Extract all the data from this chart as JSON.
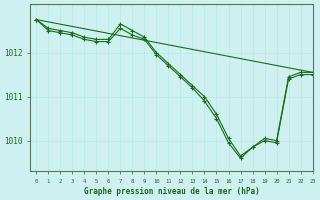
{
  "title": "Graphe pression niveau de la mer (hPa)",
  "bg_color": "#cff0f0",
  "grid_color": "#b8e8e8",
  "line_color": "#1a6b1a",
  "marker_color": "#1a6b1a",
  "xlim": [
    -0.5,
    23
  ],
  "ylim": [
    1009.3,
    1013.1
  ],
  "yticks": [
    1010,
    1011,
    1012
  ],
  "xticks": [
    0,
    1,
    2,
    3,
    4,
    5,
    6,
    7,
    8,
    9,
    10,
    11,
    12,
    13,
    14,
    15,
    16,
    17,
    18,
    19,
    20,
    21,
    22,
    23
  ],
  "series_straight": {
    "x": [
      0,
      23
    ],
    "y": [
      1012.75,
      1011.55
    ]
  },
  "series_wavy1": {
    "x": [
      0,
      1,
      2,
      3,
      4,
      5,
      6,
      7,
      8,
      9,
      10,
      11,
      12,
      13,
      14,
      15,
      16,
      17,
      18,
      19,
      20,
      21,
      22,
      23
    ],
    "y": [
      1012.75,
      1012.55,
      1012.5,
      1012.45,
      1012.35,
      1012.3,
      1012.3,
      1012.65,
      1012.5,
      1012.35,
      1012.0,
      1011.75,
      1011.5,
      1011.25,
      1011.0,
      1010.6,
      1010.05,
      1009.65,
      1009.85,
      1010.05,
      1010.0,
      1011.45,
      1011.55,
      1011.55
    ]
  },
  "series_wavy2": {
    "x": [
      0,
      1,
      2,
      3,
      4,
      5,
      6,
      7,
      8,
      9,
      10,
      11,
      12,
      13,
      14,
      15,
      16,
      17,
      18,
      19,
      20,
      21,
      22,
      23
    ],
    "y": [
      1012.75,
      1012.5,
      1012.45,
      1012.4,
      1012.3,
      1012.25,
      1012.25,
      1012.55,
      1012.4,
      1012.3,
      1011.95,
      1011.7,
      1011.45,
      1011.2,
      1010.9,
      1010.5,
      1009.95,
      1009.6,
      1009.85,
      1010.0,
      1009.95,
      1011.4,
      1011.5,
      1011.5
    ]
  }
}
